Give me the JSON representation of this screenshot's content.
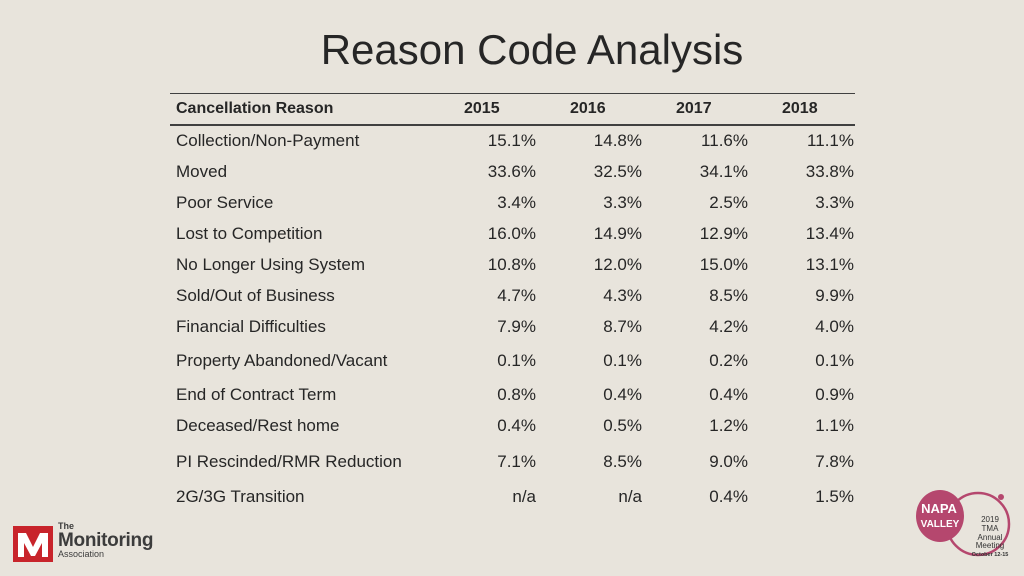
{
  "slide": {
    "title": "Reason Code Analysis"
  },
  "table": {
    "headers": [
      "Cancellation Reason",
      "2015",
      "2016",
      "2017",
      "2018"
    ],
    "rows": [
      [
        "Collection/Non-Payment",
        "15.1%",
        "14.8%",
        "11.6%",
        "11.1%"
      ],
      [
        "Moved",
        "33.6%",
        "32.5%",
        "34.1%",
        "33.8%"
      ],
      [
        "Poor Service",
        "3.4%",
        "3.3%",
        "2.5%",
        "3.3%"
      ],
      [
        "Lost to Competition",
        "16.0%",
        "14.9%",
        "12.9%",
        "13.4%"
      ],
      [
        "No Longer Using System",
        "10.8%",
        "12.0%",
        "15.0%",
        "13.1%"
      ],
      [
        "Sold/Out of Business",
        "4.7%",
        "4.3%",
        "8.5%",
        "9.9%"
      ],
      [
        "Financial Difficulties",
        "7.9%",
        "8.7%",
        "4.2%",
        "4.0%"
      ],
      [
        "Property Abandoned/Vacant",
        "0.1%",
        "0.1%",
        "0.2%",
        "0.1%"
      ],
      [
        "End of Contract Term",
        "0.8%",
        "0.4%",
        "0.4%",
        "0.9%"
      ],
      [
        "Deceased/Rest home",
        "0.4%",
        "0.5%",
        "1.2%",
        "1.1%"
      ],
      [
        "PI Rescinded/RMR Reduction",
        "7.1%",
        "8.5%",
        "9.0%",
        "7.8%"
      ],
      [
        "2G/3G Transition",
        "n/a",
        "n/a",
        "0.4%",
        "1.5%"
      ]
    ]
  },
  "logo": {
    "the": "The",
    "name": "Monitoring",
    "association": "Association",
    "mark": "M"
  },
  "badge": {
    "napa": "NAPA",
    "valley": "VALLEY",
    "year": "2019",
    "org": "TMA",
    "line1": "Annual",
    "line2": "Meeting",
    "dates": "October 12-15"
  },
  "colors": {
    "background": "#e8e4dc",
    "text": "#262626",
    "brand_red": "#c8242b",
    "wine": "#b5476e"
  }
}
